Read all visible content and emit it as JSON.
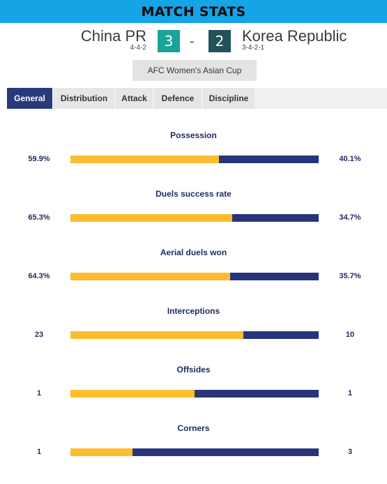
{
  "header": {
    "title": "MATCH STATS"
  },
  "match": {
    "home": {
      "name": "China PR",
      "formation": "4-4-2",
      "score": "3"
    },
    "away": {
      "name": "Korea Republic",
      "formation": "3-4-2-1",
      "score": "2"
    },
    "separator": "-",
    "competition": "AFC Women's Asian Cup"
  },
  "tabs": [
    {
      "label": "General",
      "active": true
    },
    {
      "label": "Distribution",
      "active": false
    },
    {
      "label": "Attack",
      "active": false
    },
    {
      "label": "Defence",
      "active": false
    },
    {
      "label": "Discipline",
      "active": false
    }
  ],
  "stats": [
    {
      "label": "Possession",
      "home": "59.9%",
      "away": "40.1%",
      "home_share": 0.599
    },
    {
      "label": "Duels success rate",
      "home": "65.3%",
      "away": "34.7%",
      "home_share": 0.653
    },
    {
      "label": "Aerial duels won",
      "home": "64.3%",
      "away": "35.7%",
      "home_share": 0.643
    },
    {
      "label": "Interceptions",
      "home": "23",
      "away": "10",
      "home_share": 0.697
    },
    {
      "label": "Offsides",
      "home": "1",
      "away": "1",
      "home_share": 0.5
    },
    {
      "label": "Corners",
      "home": "1",
      "away": "3",
      "home_share": 0.25
    }
  ],
  "colors": {
    "title_bar": "#15a4e6",
    "home_bar": "#fdbd2e",
    "away_bar": "#28357a",
    "home_score_bg": "#1aa39a",
    "away_score_bg": "#21525a",
    "active_tab": "#293a7c"
  }
}
